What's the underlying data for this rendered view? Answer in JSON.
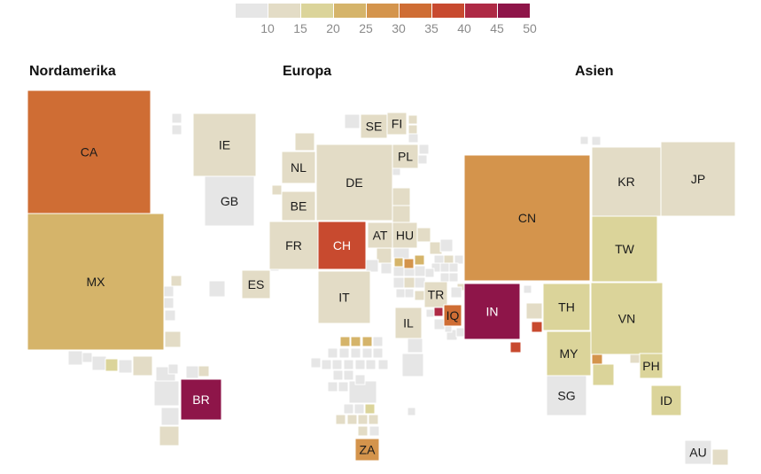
{
  "chart_data": {
    "type": "heatmap",
    "scale": {
      "colors": [
        "#e6e6e6",
        "#e3dcc6",
        "#dbd49a",
        "#d5b46a",
        "#d4944c",
        "#cf6d34",
        "#c84a2f",
        "#ae2a45",
        "#8e1549"
      ],
      "ticks": [
        "10",
        "15",
        "20",
        "25",
        "30",
        "35",
        "40",
        "45",
        "50"
      ]
    },
    "regions": [
      "Nordamerika",
      "Europa",
      "Asien"
    ],
    "labeled_cells": [
      {
        "code": "CA",
        "value": 35
      },
      {
        "code": "MX",
        "value": 25
      },
      {
        "code": "IE",
        "value": 15
      },
      {
        "code": "GB",
        "value": 10
      },
      {
        "code": "BR",
        "value": 50
      },
      {
        "code": "SE",
        "value": 15
      },
      {
        "code": "FI",
        "value": 15
      },
      {
        "code": "NL",
        "value": 15
      },
      {
        "code": "DE",
        "value": 15
      },
      {
        "code": "PL",
        "value": 15
      },
      {
        "code": "BE",
        "value": 15
      },
      {
        "code": "FR",
        "value": 15
      },
      {
        "code": "CH",
        "value": 40
      },
      {
        "code": "AT",
        "value": 15
      },
      {
        "code": "HU",
        "value": 15
      },
      {
        "code": "ES",
        "value": 15
      },
      {
        "code": "IT",
        "value": 15
      },
      {
        "code": "TR",
        "value": 15
      },
      {
        "code": "IL",
        "value": 15
      },
      {
        "code": "IQ",
        "value": 35
      },
      {
        "code": "ZA",
        "value": 30
      },
      {
        "code": "CN",
        "value": 30
      },
      {
        "code": "KR",
        "value": 15
      },
      {
        "code": "JP",
        "value": 15
      },
      {
        "code": "TW",
        "value": 20
      },
      {
        "code": "IN",
        "value": 50
      },
      {
        "code": "TH",
        "value": 20
      },
      {
        "code": "VN",
        "value": 20
      },
      {
        "code": "MY",
        "value": 20
      },
      {
        "code": "SG",
        "value": 10
      },
      {
        "code": "PH",
        "value": 20
      },
      {
        "code": "ID",
        "value": 20
      },
      {
        "code": "AU",
        "value": 10
      }
    ],
    "unlabeled_cells": [
      10,
      10,
      15,
      10,
      10,
      10,
      15,
      10,
      10,
      10,
      20,
      10,
      15,
      10,
      10,
      10,
      15,
      10,
      10,
      15,
      10,
      15,
      15,
      10,
      15,
      15,
      10,
      10,
      10,
      10,
      15,
      15,
      10,
      15,
      10,
      15,
      15,
      10,
      10,
      10,
      10,
      10,
      10,
      15,
      10,
      10,
      15,
      10,
      15,
      10,
      25,
      30,
      25,
      10,
      10,
      10,
      10,
      10,
      10,
      10,
      10,
      45,
      10,
      10,
      10,
      15,
      10,
      10,
      10,
      25,
      25,
      25,
      10,
      10,
      10,
      10,
      10,
      10,
      10,
      10,
      10,
      10,
      10,
      10,
      10,
      10,
      10,
      10,
      10,
      10,
      10,
      10,
      10,
      20,
      15,
      15,
      15,
      15,
      15,
      10,
      10,
      10,
      10,
      10,
      10,
      15,
      10,
      40,
      40,
      30,
      20,
      15,
      15,
      15,
      10
    ]
  }
}
